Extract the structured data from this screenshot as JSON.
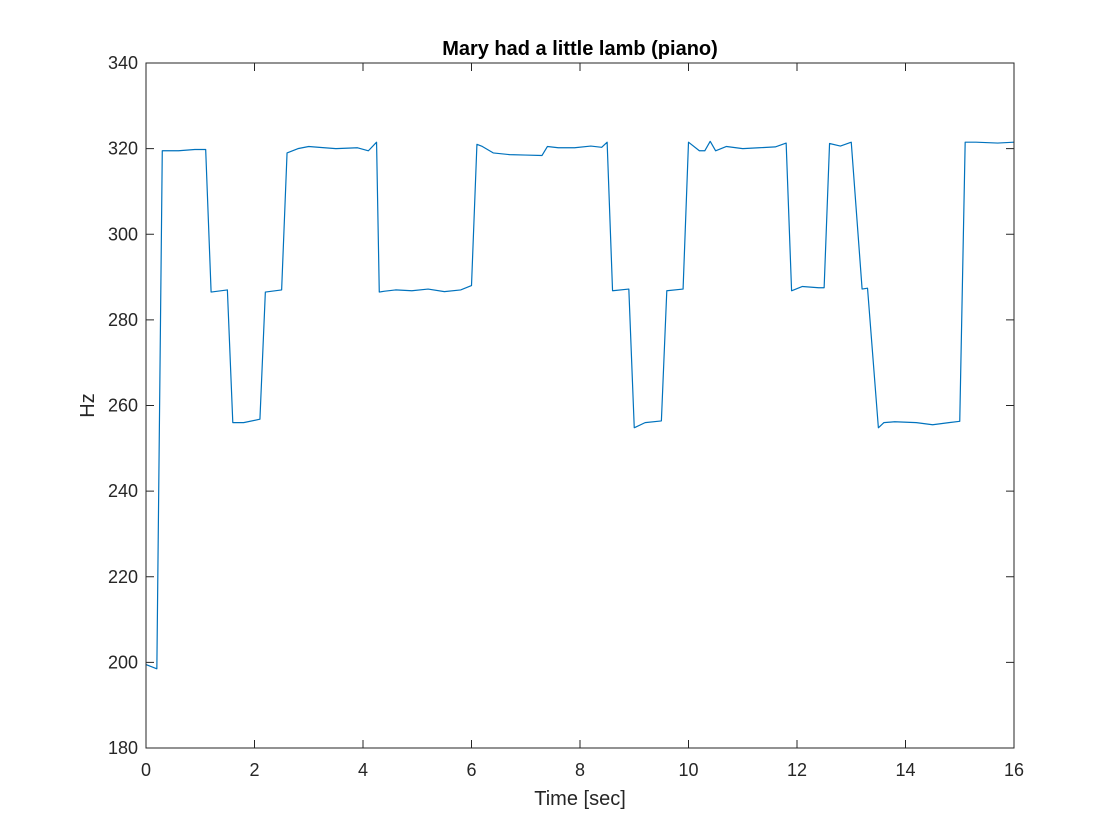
{
  "chart_data": {
    "type": "line",
    "title": "Mary had a little lamb (piano)",
    "xlabel": "Time [sec]",
    "ylabel": "Hz",
    "xlim": [
      0,
      16
    ],
    "ylim": [
      180,
      340
    ],
    "xticks": [
      0,
      2,
      4,
      6,
      8,
      10,
      12,
      14,
      16
    ],
    "yticks": [
      180,
      200,
      220,
      240,
      260,
      280,
      300,
      320,
      340
    ],
    "grid": false,
    "series": [
      {
        "color": "#0072BD",
        "x": [
          0,
          0.2,
          0.3,
          0.6,
          0.9,
          1.1,
          1.2,
          1.5,
          1.6,
          1.8,
          2.1,
          2.2,
          2.5,
          2.6,
          2.8,
          3.0,
          3.2,
          3.5,
          3.9,
          4.1,
          4.25,
          4.3,
          4.4,
          4.6,
          4.9,
          5.2,
          5.5,
          5.8,
          6.0,
          6.1,
          6.2,
          6.4,
          6.7,
          7.0,
          7.3,
          7.4,
          7.6,
          7.9,
          8.2,
          8.4,
          8.5,
          8.6,
          8.9,
          9.0,
          9.2,
          9.5,
          9.6,
          9.9,
          10.0,
          10.2,
          10.3,
          10.4,
          10.5,
          10.7,
          11.0,
          11.3,
          11.6,
          11.8,
          11.9,
          12.1,
          12.4,
          12.5,
          12.6,
          12.8,
          13.0,
          13.2,
          13.3,
          13.5,
          13.6,
          13.8,
          14.2,
          14.5,
          14.8,
          15.0,
          15.1,
          15.3,
          15.7,
          16.0
        ],
        "y": [
          199.5,
          198.5,
          319.5,
          319.5,
          319.8,
          319.8,
          286.5,
          287.0,
          256.0,
          256.0,
          256.8,
          286.5,
          287.0,
          319.0,
          320.0,
          320.5,
          320.3,
          320.0,
          320.2,
          319.5,
          321.5,
          286.5,
          286.7,
          287.0,
          286.8,
          287.2,
          286.6,
          287.0,
          288.0,
          321.0,
          320.5,
          319.0,
          318.6,
          318.5,
          318.4,
          320.5,
          320.2,
          320.2,
          320.6,
          320.3,
          321.5,
          286.8,
          287.2,
          254.8,
          256.0,
          256.4,
          286.8,
          287.2,
          321.5,
          319.5,
          319.5,
          321.7,
          319.5,
          320.5,
          320.0,
          320.2,
          320.4,
          321.3,
          286.8,
          287.8,
          287.5,
          287.5,
          321.2,
          320.6,
          321.5,
          287.2,
          287.4,
          254.8,
          256.0,
          256.2,
          256.0,
          255.5,
          256.0,
          256.3,
          321.5,
          321.5,
          321.3,
          321.5
        ]
      }
    ]
  }
}
